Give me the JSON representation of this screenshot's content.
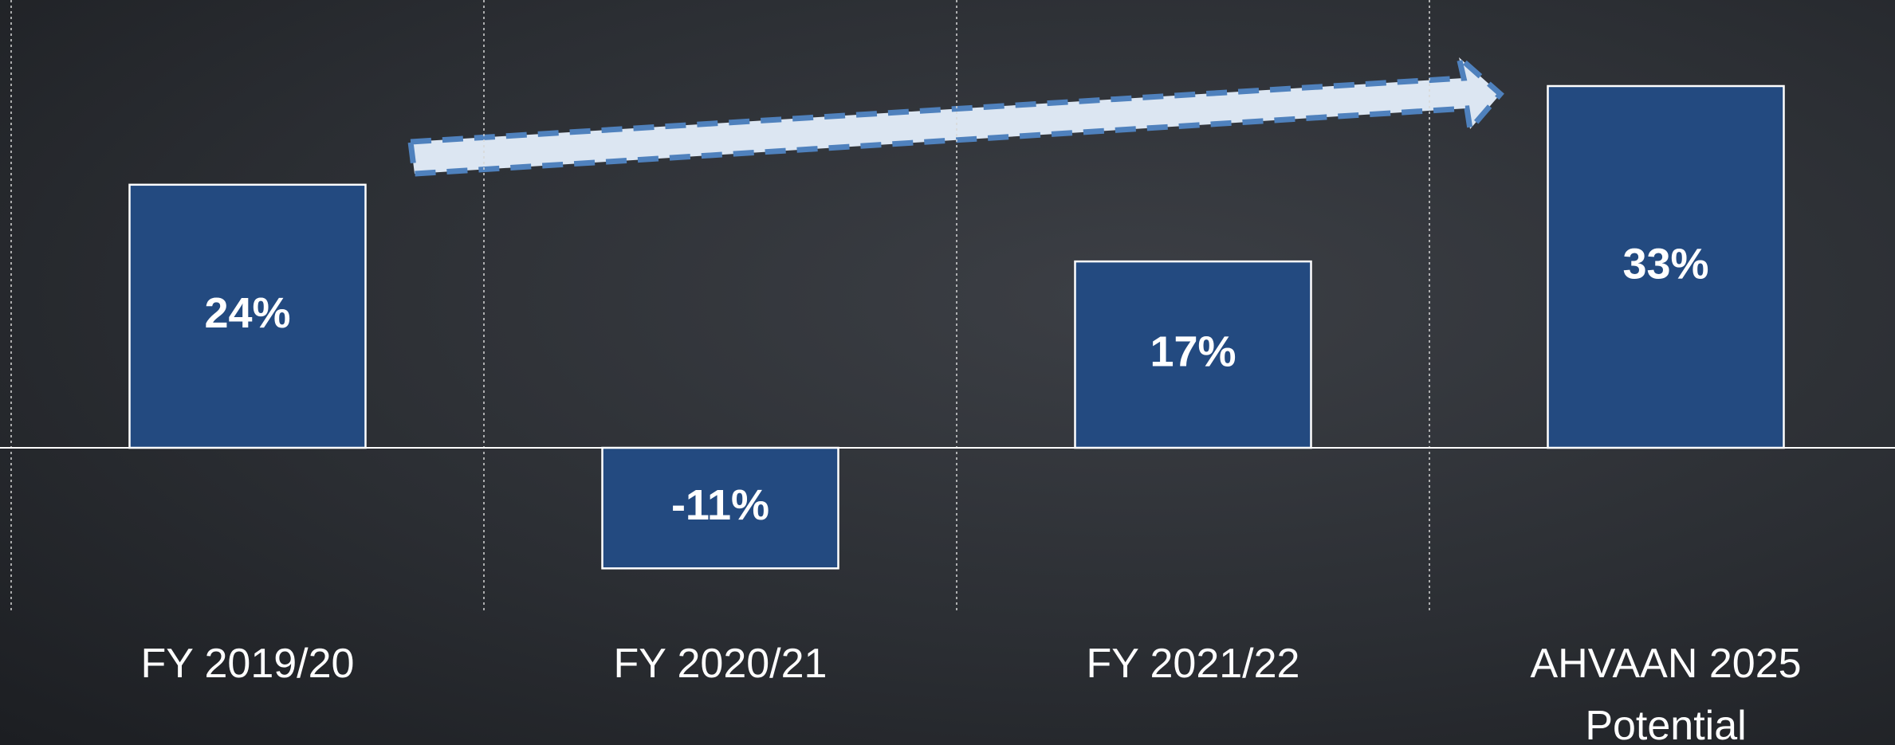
{
  "chart_data": {
    "type": "bar",
    "categories": [
      "FY 2019/20",
      "FY 2020/21",
      "FY 2021/22",
      "AHVAAN 2025 Potential"
    ],
    "values": [
      24,
      -11,
      17,
      33
    ],
    "value_labels": [
      "24%",
      "-11%",
      "17%",
      "33%"
    ],
    "color": "#234a80"
  }
}
